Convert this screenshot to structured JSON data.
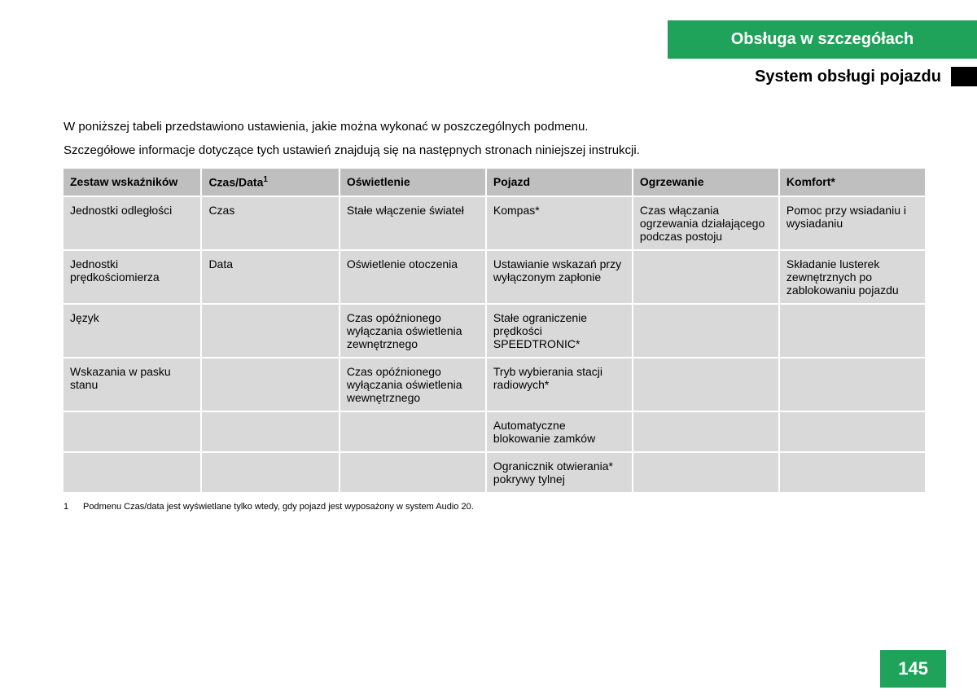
{
  "header": {
    "banner": "Obsługa w szczegółach",
    "subtitle": "System obsługi pojazdu"
  },
  "intro": {
    "line1": "W poniższej tabeli przedstawiono ustawienia, jakie można wykonać w poszczególnych podmenu.",
    "line2": "Szczegółowe informacje dotyczące tych ustawień znajdują się na następnych stronach niniejszej instrukcji."
  },
  "table": {
    "headers": {
      "c0": "Zestaw wskaźników",
      "c1": "Czas/Data",
      "c1_sup": "1",
      "c2": "Oświetlenie",
      "c3": "Pojazd",
      "c4": "Ogrzewanie",
      "c5": "Komfort*"
    },
    "rows": [
      {
        "c0": "Jednostki odległości",
        "c1": "Czas",
        "c2": "Stałe włączenie świateł",
        "c3": "Kompas*",
        "c4": "Czas włączania ogrzewania działającego podczas postoju",
        "c5": "Pomoc przy wsiadaniu i wysiadaniu"
      },
      {
        "c0": "Jednostki prędkościomierza",
        "c1": "Data",
        "c2": "Oświetlenie otoczenia",
        "c3": "Ustawianie wskazań przy wyłączonym zapłonie",
        "c4": "",
        "c5": "Składanie lusterek zewnętrznych po zablokowaniu pojazdu"
      },
      {
        "c0": "Język",
        "c1": "",
        "c2": "Czas opóźnionego wyłączania oświetlenia zewnętrznego",
        "c3": "Stałe ograniczenie prędkości SPEEDTRONIC*",
        "c4": "",
        "c5": ""
      },
      {
        "c0": "Wskazania w pasku stanu",
        "c1": "",
        "c2": "Czas opóźnionego wyłączania oświetlenia wewnętrznego",
        "c3": "Tryb wybierania stacji radiowych*",
        "c4": "",
        "c5": ""
      },
      {
        "c0": "",
        "c1": "",
        "c2": "",
        "c3": "Automatyczne blokowanie zamków",
        "c4": "",
        "c5": ""
      },
      {
        "c0": "",
        "c1": "",
        "c2": "",
        "c3": "Ogranicznik otwierania* pokrywy tylnej",
        "c4": "",
        "c5": ""
      }
    ],
    "col_widths": [
      "16%",
      "16%",
      "17%",
      "17%",
      "17%",
      "17%"
    ]
  },
  "footnote": {
    "num": "1",
    "text": "Podmenu Czas/data jest wyświetlane tylko wtedy, gdy pojazd jest wyposażony w system Audio 20."
  },
  "page_number": "145",
  "colors": {
    "green": "#1fa25a",
    "header_gray": "#bfbfbf",
    "cell_gray": "#d9d9d9",
    "white": "#ffffff",
    "black": "#000000"
  }
}
